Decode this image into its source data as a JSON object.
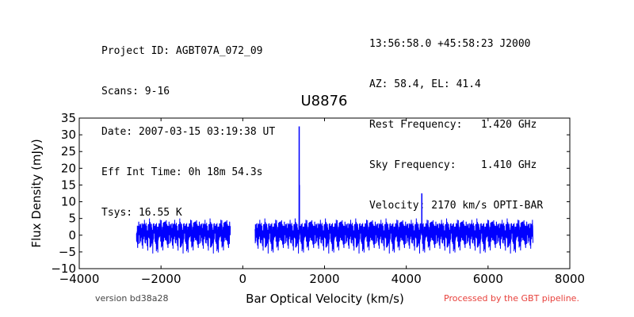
{
  "header": {
    "left_lines": [
      "Project ID: AGBT07A_072_09",
      "Scans: 9-16",
      "Date: 2007-03-15 03:19:38 UT",
      "Eff Int Time: 0h 18m 54.3s",
      "Tsys: 16.55 K"
    ],
    "right_lines": [
      "13:56:58.0 +45:58:23 J2000",
      "AZ: 58.4, EL: 41.4",
      "Rest Frequency:   1.420 GHz",
      "Sky Frequency:    1.410 GHz",
      "Velocity: 2170 km/s OPTI-BAR"
    ]
  },
  "footer": {
    "version": "version bd38a28",
    "processed": "Processed by the GBT pipeline."
  },
  "colors": {
    "series": "#0000ff",
    "processed_text": "#e8413c"
  },
  "chart_data": {
    "type": "line",
    "title": "U8876",
    "xlabel": "Bar Optical Velocity (km/s)",
    "ylabel": "Flux Density (mJy)",
    "xlim": [
      -4000,
      8000
    ],
    "ylim": [
      -10,
      35
    ],
    "xticks": [
      -4000,
      -2000,
      0,
      2000,
      4000,
      6000,
      8000
    ],
    "yticks": [
      -10,
      -5,
      0,
      5,
      10,
      15,
      20,
      25,
      30,
      35
    ],
    "grid": false,
    "legend": "none",
    "series": [
      {
        "segments": [
          {
            "x_range": [
              -2600,
              -300
            ],
            "baseline": 0,
            "noise_rms": 2.3
          },
          {
            "x_range": [
              300,
              7100
            ],
            "baseline": 0,
            "noise_rms": 2.3
          }
        ],
        "spikes": [
          {
            "x": 1380,
            "y": 32.5
          },
          {
            "x": 1385,
            "y": 15.0
          },
          {
            "x": 4380,
            "y": 12.5
          }
        ]
      }
    ]
  }
}
